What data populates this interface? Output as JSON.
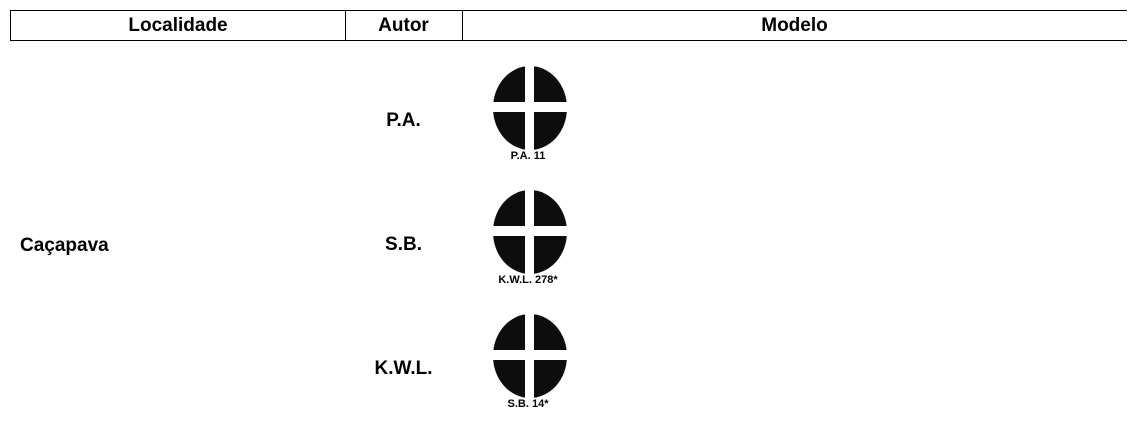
{
  "table": {
    "header": [
      "Localidade",
      "Autor",
      "Modelo"
    ],
    "locality": "Caçapava",
    "rows": [
      {
        "author": "P.A.",
        "model": "P.A. 11"
      },
      {
        "author": "S.B.",
        "model": "K.W.L. 278*"
      },
      {
        "author": "K.W.L.",
        "model": "S.B. 14*"
      }
    ]
  }
}
